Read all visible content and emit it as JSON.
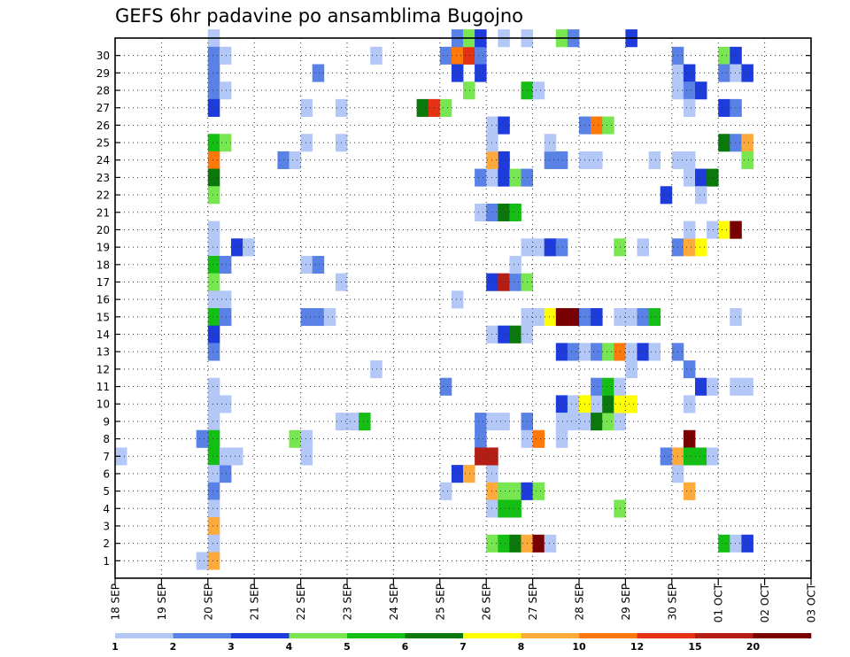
{
  "chart_data": {
    "type": "heatmap",
    "title": "GEFS 6hr padavine po ansamblima Bugojno",
    "y_categories": [
      "1",
      "2",
      "3",
      "4",
      "5",
      "6",
      "7",
      "8",
      "9",
      "10",
      "11",
      "12",
      "13",
      "14",
      "15",
      "16",
      "17",
      "18",
      "19",
      "20",
      "21",
      "22",
      "23",
      "24",
      "25",
      "26",
      "27",
      "28",
      "29",
      "30"
    ],
    "x_ticks": [
      "18 SEP",
      "19 SEP",
      "20 SEP",
      "21 SEP",
      "22 SEP",
      "23 SEP",
      "24 SEP",
      "25 SEP",
      "26 SEP",
      "27 SEP",
      "28 SEP",
      "29 SEP",
      "30 SEP",
      "01 OCT",
      "02 OCT",
      "03 OCT"
    ],
    "x_unit": "6h step from 18 SEP 00Z",
    "x_range": [
      0,
      60
    ],
    "grid": true,
    "colorbar": {
      "labels": [
        "1",
        "2",
        "3",
        "4",
        "5",
        "6",
        "7",
        "8",
        "10",
        "12",
        "15",
        "20"
      ],
      "colors": [
        "#b4c8f8",
        "#5a82e6",
        "#1e3cdc",
        "#78e650",
        "#14be14",
        "#0a780a",
        "#ffff00",
        "#ffaa3c",
        "#ff780a",
        "#e63214",
        "#b41e14",
        "#780000"
      ]
    },
    "cells": [
      [
        8,
        30,
        0
      ],
      [
        8,
        29,
        1
      ],
      [
        8,
        28,
        1
      ],
      [
        8,
        27,
        1
      ],
      [
        9,
        27,
        0
      ],
      [
        8,
        26,
        2
      ],
      [
        8,
        24,
        4
      ],
      [
        9,
        24,
        3
      ],
      [
        8,
        23,
        8
      ],
      [
        8,
        22,
        5
      ],
      [
        8,
        21,
        3
      ],
      [
        8,
        19,
        0
      ],
      [
        8,
        18,
        0
      ],
      [
        8,
        17,
        4
      ],
      [
        9,
        17,
        1
      ],
      [
        8,
        16,
        3
      ],
      [
        8,
        15,
        0
      ],
      [
        9,
        15,
        0
      ],
      [
        8,
        14,
        4
      ],
      [
        9,
        14,
        1
      ],
      [
        8,
        13,
        2
      ],
      [
        8,
        12,
        1
      ],
      [
        8,
        10,
        0
      ],
      [
        8,
        9,
        0
      ],
      [
        8,
        8,
        0
      ],
      [
        8,
        7,
        4
      ],
      [
        7,
        7,
        1
      ],
      [
        8,
        6,
        4
      ],
      [
        8,
        5,
        0
      ],
      [
        9,
        5,
        1
      ],
      [
        8,
        4,
        1
      ],
      [
        8,
        3,
        0
      ],
      [
        8,
        2,
        7
      ],
      [
        8,
        1,
        0
      ],
      [
        7,
        0,
        0
      ],
      [
        8,
        0,
        7
      ],
      [
        9,
        29,
        0
      ],
      [
        9,
        9,
        0
      ],
      [
        0,
        6,
        0
      ],
      [
        14,
        23,
        1
      ],
      [
        15,
        23,
        0
      ],
      [
        16,
        24,
        0
      ],
      [
        16,
        26,
        0
      ],
      [
        17,
        28,
        1
      ],
      [
        10,
        18,
        2
      ],
      [
        11,
        18,
        0
      ],
      [
        9,
        6,
        0
      ],
      [
        10,
        6,
        0
      ],
      [
        15,
        7,
        3
      ],
      [
        16,
        7,
        0
      ],
      [
        16,
        6,
        0
      ],
      [
        16,
        14,
        1
      ],
      [
        17,
        14,
        1
      ],
      [
        16,
        17,
        0
      ],
      [
        17,
        17,
        1
      ],
      [
        18,
        14,
        0
      ],
      [
        19,
        26,
        0
      ],
      [
        19,
        24,
        0
      ],
      [
        19,
        16,
        0
      ],
      [
        19,
        8,
        0
      ],
      [
        20,
        8,
        0
      ],
      [
        21,
        8,
        4
      ],
      [
        22,
        11,
        0
      ],
      [
        22,
        29,
        0
      ],
      [
        26,
        26,
        5
      ],
      [
        27,
        26,
        9
      ],
      [
        28,
        26,
        3
      ],
      [
        28,
        29,
        1
      ],
      [
        29,
        29,
        8
      ],
      [
        30,
        29,
        9
      ],
      [
        31,
        29,
        1
      ],
      [
        29,
        30,
        1
      ],
      [
        30,
        30,
        3
      ],
      [
        31,
        30,
        2
      ],
      [
        29,
        28,
        2
      ],
      [
        31,
        28,
        2
      ],
      [
        30,
        27,
        3
      ],
      [
        28,
        10,
        1
      ],
      [
        29,
        15,
        0
      ],
      [
        29,
        5,
        2
      ],
      [
        30,
        5,
        7
      ],
      [
        28,
        4,
        0
      ],
      [
        31,
        22,
        1
      ],
      [
        32,
        22,
        0
      ],
      [
        33,
        22,
        2
      ],
      [
        34,
        22,
        3
      ],
      [
        35,
        22,
        1
      ],
      [
        31,
        8,
        1
      ],
      [
        31,
        7,
        1
      ],
      [
        32,
        8,
        0
      ],
      [
        33,
        8,
        0
      ],
      [
        32,
        5,
        0
      ],
      [
        32,
        25,
        0
      ],
      [
        33,
        25,
        2
      ],
      [
        33,
        23,
        2
      ],
      [
        32,
        23,
        7
      ],
      [
        31,
        20,
        0
      ],
      [
        32,
        20,
        1
      ],
      [
        33,
        20,
        5
      ],
      [
        34,
        20,
        4
      ],
      [
        32,
        16,
        2
      ],
      [
        33,
        16,
        10
      ],
      [
        34,
        16,
        1
      ],
      [
        35,
        16,
        3
      ],
      [
        34,
        17,
        0
      ],
      [
        32,
        13,
        0
      ],
      [
        33,
        13,
        2
      ],
      [
        34,
        13,
        5
      ],
      [
        35,
        13,
        0
      ],
      [
        31,
        6,
        10
      ],
      [
        32,
        6,
        10
      ],
      [
        32,
        4,
        7
      ],
      [
        33,
        4,
        3
      ],
      [
        34,
        4,
        3
      ],
      [
        32,
        3,
        0
      ],
      [
        33,
        3,
        4
      ],
      [
        32,
        1,
        3
      ],
      [
        33,
        1,
        4
      ],
      [
        34,
        1,
        5
      ],
      [
        35,
        1,
        7
      ],
      [
        36,
        1,
        11
      ],
      [
        37,
        1,
        0
      ],
      [
        34,
        3,
        4
      ],
      [
        32,
        24,
        0
      ],
      [
        33,
        30,
        0
      ],
      [
        35,
        30,
        0
      ],
      [
        35,
        27,
        4
      ],
      [
        36,
        27,
        0
      ],
      [
        35,
        8,
        1
      ],
      [
        35,
        7,
        0
      ],
      [
        36,
        7,
        8
      ],
      [
        35,
        4,
        2
      ],
      [
        36,
        4,
        3
      ],
      [
        35,
        14,
        0
      ],
      [
        36,
        14,
        0
      ],
      [
        37,
        14,
        6
      ],
      [
        38,
        14,
        11
      ],
      [
        39,
        14,
        11
      ],
      [
        35,
        18,
        0
      ],
      [
        36,
        18,
        0
      ],
      [
        37,
        18,
        2
      ],
      [
        38,
        18,
        1
      ],
      [
        37,
        23,
        1
      ],
      [
        38,
        23,
        1
      ],
      [
        37,
        24,
        0
      ],
      [
        38,
        12,
        2
      ],
      [
        39,
        12,
        1
      ],
      [
        38,
        9,
        2
      ],
      [
        39,
        9,
        0
      ],
      [
        40,
        9,
        6
      ],
      [
        41,
        9,
        0
      ],
      [
        38,
        8,
        0
      ],
      [
        39,
        8,
        0
      ],
      [
        40,
        8,
        0
      ],
      [
        38,
        7,
        0
      ],
      [
        41,
        8,
        5
      ],
      [
        42,
        8,
        3
      ],
      [
        43,
        8,
        0
      ],
      [
        42,
        9,
        5
      ],
      [
        43,
        9,
        6
      ],
      [
        44,
        9,
        6
      ],
      [
        41,
        10,
        1
      ],
      [
        42,
        10,
        4
      ],
      [
        43,
        10,
        0
      ],
      [
        40,
        12,
        0
      ],
      [
        41,
        12,
        1
      ],
      [
        42,
        12,
        3
      ],
      [
        43,
        12,
        8
      ],
      [
        44,
        12,
        0
      ],
      [
        45,
        12,
        2
      ],
      [
        46,
        12,
        0
      ],
      [
        44,
        11,
        0
      ],
      [
        40,
        14,
        1
      ],
      [
        41,
        14,
        2
      ],
      [
        43,
        14,
        0
      ],
      [
        44,
        14,
        0
      ],
      [
        45,
        14,
        1
      ],
      [
        46,
        14,
        4
      ],
      [
        40,
        25,
        1
      ],
      [
        41,
        25,
        8
      ],
      [
        42,
        25,
        3
      ],
      [
        40,
        23,
        0
      ],
      [
        43,
        3,
        3
      ],
      [
        43,
        18,
        3
      ],
      [
        45,
        18,
        0
      ],
      [
        44,
        30,
        2
      ],
      [
        38,
        30,
        3
      ],
      [
        39,
        30,
        1
      ],
      [
        46,
        23,
        0
      ],
      [
        41,
        23,
        0
      ],
      [
        48,
        23,
        0
      ],
      [
        49,
        23,
        0
      ],
      [
        49,
        22,
        0
      ],
      [
        50,
        22,
        2
      ],
      [
        51,
        22,
        5
      ],
      [
        48,
        18,
        1
      ],
      [
        49,
        18,
        7
      ],
      [
        50,
        18,
        6
      ],
      [
        49,
        19,
        0
      ],
      [
        51,
        19,
        0
      ],
      [
        52,
        19,
        6
      ],
      [
        53,
        19,
        11
      ],
      [
        47,
        21,
        2
      ],
      [
        50,
        21,
        0
      ],
      [
        48,
        28,
        0
      ],
      [
        48,
        27,
        0
      ],
      [
        49,
        28,
        2
      ],
      [
        49,
        27,
        1
      ],
      [
        50,
        27,
        2
      ],
      [
        48,
        29,
        1
      ],
      [
        49,
        26,
        0
      ],
      [
        52,
        29,
        3
      ],
      [
        53,
        29,
        2
      ],
      [
        52,
        28,
        1
      ],
      [
        53,
        28,
        0
      ],
      [
        54,
        28,
        2
      ],
      [
        52,
        26,
        2
      ],
      [
        53,
        26,
        1
      ],
      [
        52,
        24,
        5
      ],
      [
        53,
        24,
        1
      ],
      [
        54,
        24,
        7
      ],
      [
        54,
        23,
        3
      ],
      [
        48,
        12,
        1
      ],
      [
        49,
        11,
        1
      ],
      [
        50,
        10,
        2
      ],
      [
        51,
        10,
        0
      ],
      [
        53,
        10,
        0
      ],
      [
        54,
        10,
        0
      ],
      [
        53,
        14,
        0
      ],
      [
        49,
        7,
        11
      ],
      [
        47,
        6,
        1
      ],
      [
        48,
        6,
        7
      ],
      [
        49,
        6,
        4
      ],
      [
        50,
        6,
        4
      ],
      [
        51,
        6,
        0
      ],
      [
        49,
        4,
        7
      ],
      [
        52,
        1,
        4
      ],
      [
        53,
        1,
        0
      ],
      [
        54,
        1,
        2
      ],
      [
        49,
        9,
        0
      ],
      [
        48,
        5,
        0
      ]
    ]
  }
}
